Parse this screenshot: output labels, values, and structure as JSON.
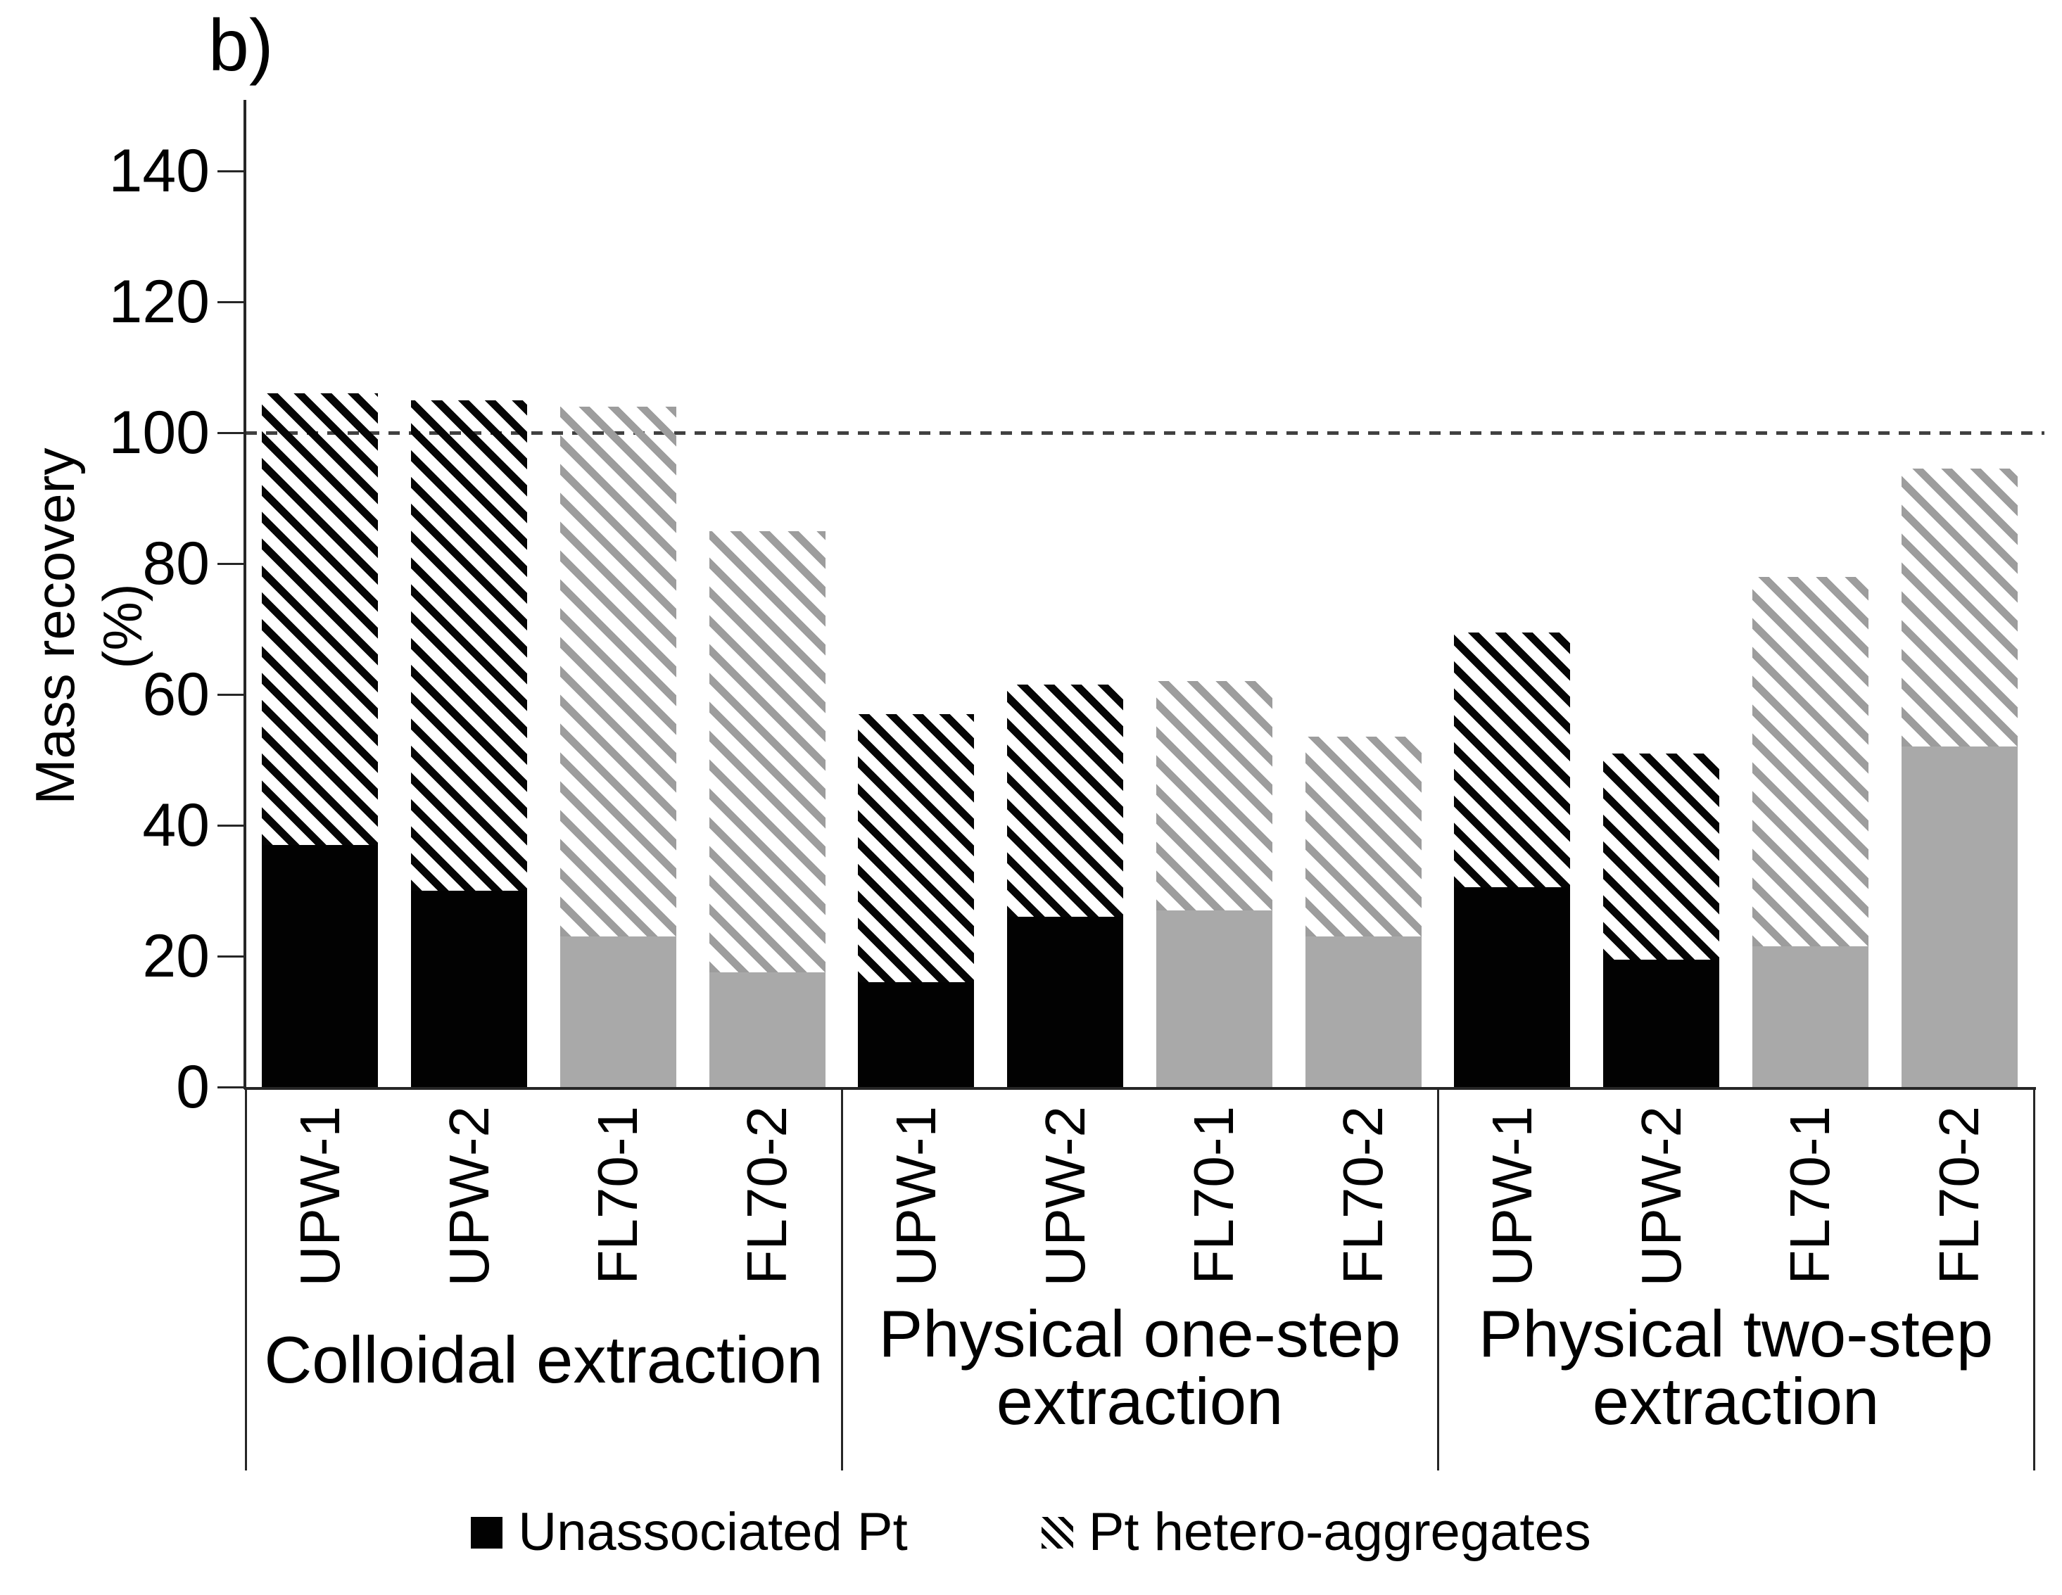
{
  "colors": {
    "black_series": "#000000",
    "gray_fill": "#a9a9a9",
    "gray_hatch": "#9d9d9d",
    "reference_line": "#404040",
    "axis": "#262626",
    "background": "#ffffff"
  },
  "chart_data": {
    "type": "bar",
    "stacked": true,
    "title": "b)",
    "xlabel": "",
    "ylabel": "Mass recovery (%)",
    "y_axis": {
      "label": "Mass recovery (%)",
      "ticks": [
        0,
        20,
        40,
        60,
        80,
        100,
        120,
        140
      ],
      "ylim": [
        0,
        150
      ]
    },
    "grid": "off",
    "legend_position": "bottom",
    "reference_line": {
      "value": 100,
      "style": "dashed"
    },
    "legend": [
      {
        "label": "Unassociated Pt",
        "style": "solid-black-square"
      },
      {
        "label": "Pt hetero-aggregates",
        "style": "black-diagonal-hatch-square"
      }
    ],
    "categories": [
      "UPW-1",
      "UPW-2",
      "FL70-1",
      "FL70-2",
      "UPW-1",
      "UPW-2",
      "FL70-1",
      "FL70-2",
      "UPW-1",
      "UPW-2",
      "FL70-1",
      "FL70-2"
    ],
    "series": [
      {
        "name": "Unassociated Pt",
        "values": [
          37,
          30,
          23,
          17.5,
          16,
          26,
          27,
          23,
          30.5,
          19.5,
          21.5,
          52
        ]
      },
      {
        "name": "Pt hetero-aggregates",
        "values": [
          69,
          75,
          81,
          67.5,
          41,
          35.5,
          35,
          30.5,
          39,
          31.5,
          56.5,
          42.5
        ]
      }
    ],
    "groups": [
      {
        "label": "Colloidal extraction",
        "label_lines": [
          "Colloidal extraction"
        ],
        "bars": [
          {
            "category": "UPW-1",
            "palette": "black",
            "unassociated_pt": 37,
            "pt_hetero_aggregates": 69
          },
          {
            "category": "UPW-2",
            "palette": "black",
            "unassociated_pt": 30,
            "pt_hetero_aggregates": 75
          },
          {
            "category": "FL70-1",
            "palette": "gray",
            "unassociated_pt": 23,
            "pt_hetero_aggregates": 81
          },
          {
            "category": "FL70-2",
            "palette": "gray",
            "unassociated_pt": 17.5,
            "pt_hetero_aggregates": 67.5
          }
        ]
      },
      {
        "label": "Physical one-step extraction",
        "label_lines": [
          "Physical one-step",
          "extraction"
        ],
        "bars": [
          {
            "category": "UPW-1",
            "palette": "black",
            "unassociated_pt": 16,
            "pt_hetero_aggregates": 41
          },
          {
            "category": "UPW-2",
            "palette": "black",
            "unassociated_pt": 26,
            "pt_hetero_aggregates": 35.5
          },
          {
            "category": "FL70-1",
            "palette": "gray",
            "unassociated_pt": 27,
            "pt_hetero_aggregates": 35
          },
          {
            "category": "FL70-2",
            "palette": "gray",
            "unassociated_pt": 23,
            "pt_hetero_aggregates": 30.5
          }
        ]
      },
      {
        "label": "Physical two-step extraction",
        "label_lines": [
          "Physical two-step",
          "extraction"
        ],
        "bars": [
          {
            "category": "UPW-1",
            "palette": "black",
            "unassociated_pt": 30.5,
            "pt_hetero_aggregates": 39
          },
          {
            "category": "UPW-2",
            "palette": "black",
            "unassociated_pt": 19.5,
            "pt_hetero_aggregates": 31.5
          },
          {
            "category": "FL70-1",
            "palette": "gray",
            "unassociated_pt": 21.5,
            "pt_hetero_aggregates": 56.5
          },
          {
            "category": "FL70-2",
            "palette": "gray",
            "unassociated_pt": 52,
            "pt_hetero_aggregates": 42.5
          }
        ]
      }
    ]
  }
}
